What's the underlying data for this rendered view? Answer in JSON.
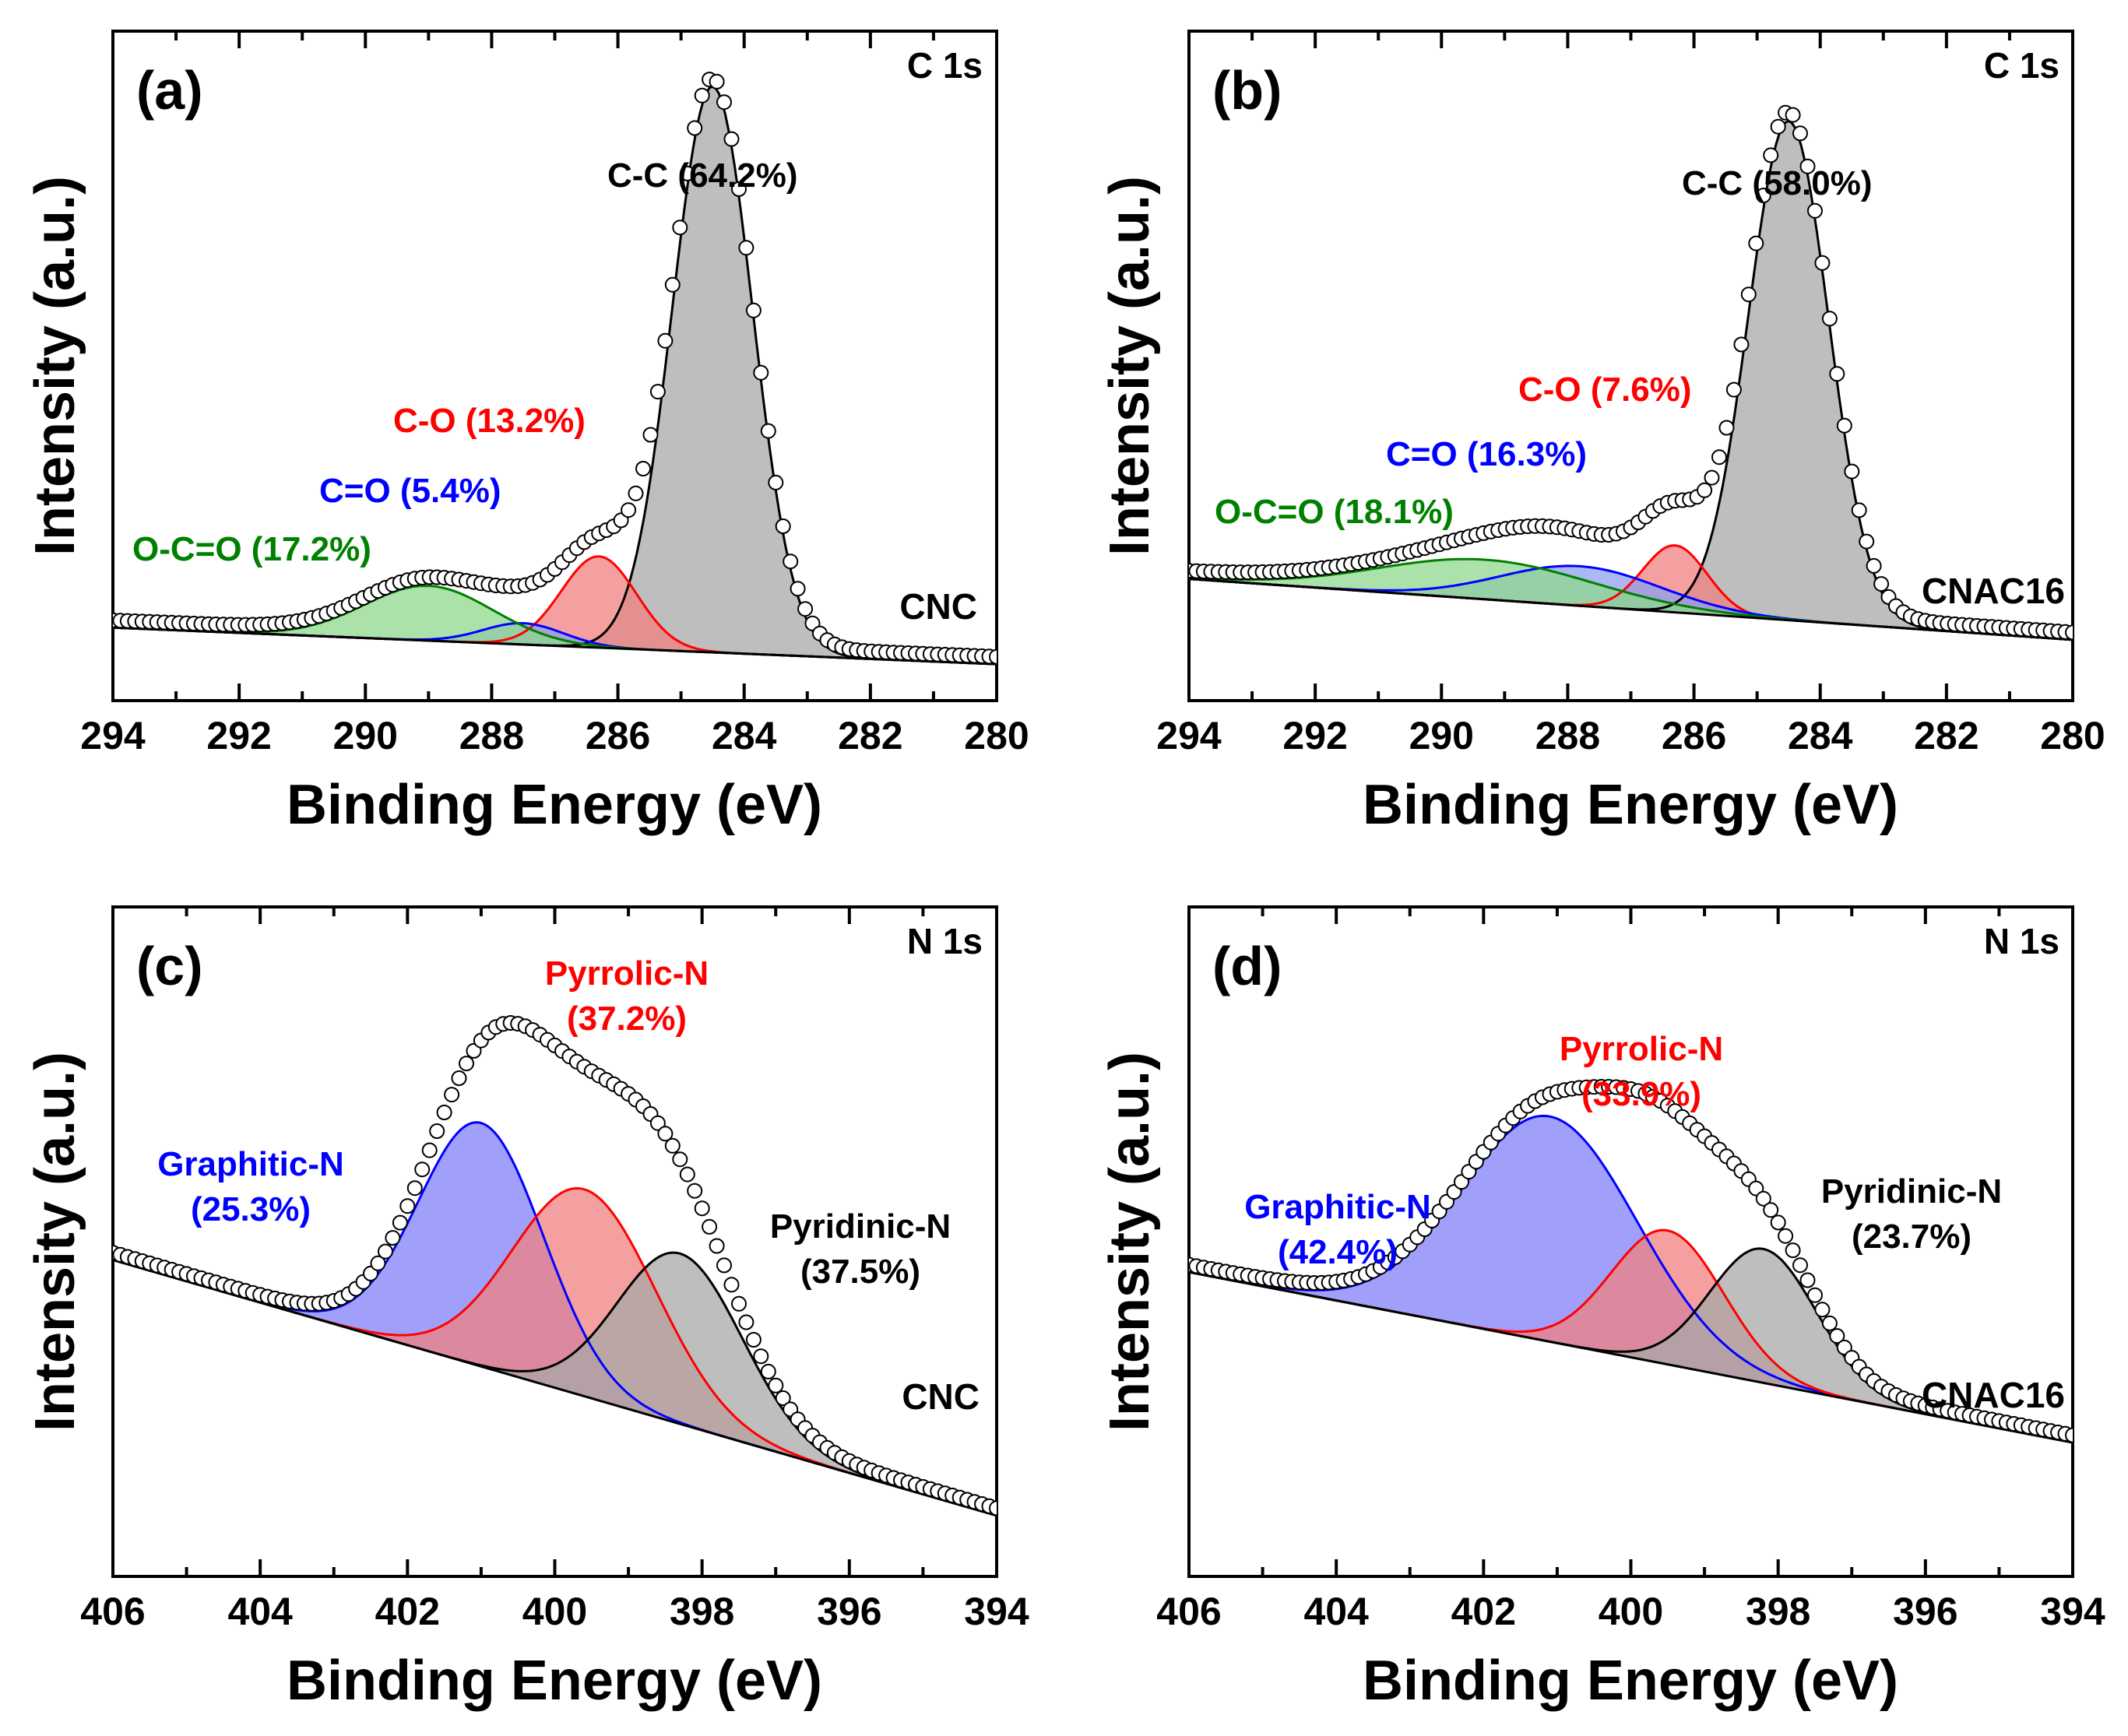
{
  "chart_data": [
    {
      "type": "area",
      "panel_label": "(a)",
      "core_level": "C 1s",
      "sample": "CNC",
      "xlabel": "Binding Energy (eV)",
      "ylabel": "Intensity (a.u.)",
      "xlim": [
        294,
        280
      ],
      "xticks": [
        294,
        292,
        290,
        288,
        286,
        284,
        282,
        280
      ],
      "ylim": [
        0,
        1.1
      ],
      "background": [
        0.12,
        0.06
      ],
      "experimental_style": "open circles",
      "components": [
        {
          "name": "C-C",
          "percent": "64.2%",
          "label": "C-C (64.2%)",
          "color": "#000000",
          "fill": "#a8a8a8",
          "center": 284.5,
          "height": 0.93,
          "fwhm": 1.5
        },
        {
          "name": "C-O",
          "percent": "13.2%",
          "label": "C-O (13.2%)",
          "color": "#ff0000",
          "fill": "#f08080",
          "center": 286.3,
          "height": 0.15,
          "fwhm": 1.4
        },
        {
          "name": "C=O",
          "percent": "5.4%",
          "label": "C=O (5.4%)",
          "color": "#0000ff",
          "fill": "#8fa0f0",
          "center": 287.5,
          "height": 0.035,
          "fwhm": 1.5
        },
        {
          "name": "O-C=O",
          "percent": "17.2%",
          "label": "O-C=O (17.2%)",
          "color": "#008000",
          "fill": "#8ed88e",
          "center": 289.0,
          "height": 0.09,
          "fwhm": 2.4
        }
      ]
    },
    {
      "type": "area",
      "panel_label": "(b)",
      "core_level": "C 1s",
      "sample": "CNAC16",
      "xlabel": "Binding Energy (eV)",
      "ylabel": "Intensity (a.u.)",
      "xlim": [
        294,
        280
      ],
      "xticks": [
        294,
        292,
        290,
        288,
        286,
        284,
        282,
        280
      ],
      "ylim": [
        0,
        1.1
      ],
      "background": [
        0.2,
        0.1
      ],
      "experimental_style": "open circles",
      "components": [
        {
          "name": "C-C",
          "percent": "58.0%",
          "label": "C-C (58.0%)",
          "color": "#000000",
          "fill": "#a8a8a8",
          "center": 284.5,
          "height": 0.82,
          "fwhm": 1.5
        },
        {
          "name": "C-O",
          "percent": "7.6%",
          "label": "C-O (7.6%)",
          "color": "#ff0000",
          "fill": "#f08080",
          "center": 286.3,
          "height": 0.11,
          "fwhm": 1.2
        },
        {
          "name": "C=O",
          "percent": "16.3%",
          "label": "C=O (16.3%)",
          "color": "#0000ff",
          "fill": "#8fa0f0",
          "center": 287.8,
          "height": 0.065,
          "fwhm": 3.0
        },
        {
          "name": "O-C=O",
          "percent": "18.1%",
          "label": "O-C=O (18.1%)",
          "color": "#008000",
          "fill": "#8ed88e",
          "center": 289.3,
          "height": 0.065,
          "fwhm": 4.0
        }
      ]
    },
    {
      "type": "area",
      "panel_label": "(c)",
      "core_level": "N 1s",
      "sample": "CNC",
      "xlabel": "Binding Energy (eV)",
      "ylabel": "Intensity (a.u.)",
      "xlim": [
        406,
        394
      ],
      "xticks": [
        406,
        404,
        402,
        400,
        398,
        396,
        394
      ],
      "ylim": [
        0,
        1.1
      ],
      "background": [
        0.52,
        0.1
      ],
      "experimental_style": "open circles",
      "components": [
        {
          "name": "Graphitic-N",
          "percent": "25.3%",
          "label_line1": "Graphitic-N",
          "label_line2": "(25.3%)",
          "color": "#0000ff",
          "fill": "#8080f8",
          "center": 401.0,
          "height": 0.4,
          "fwhm": 2.0
        },
        {
          "name": "Pyrrolic-N",
          "percent": "37.2%",
          "label_line1": "Pyrrolic-N",
          "label_line2": "(37.2%)",
          "color": "#ff0000",
          "fill": "#f08080",
          "center": 399.6,
          "height": 0.34,
          "fwhm": 2.3
        },
        {
          "name": "Pyridinic-N",
          "percent": "37.5%",
          "label_line1": "Pyridinic-N",
          "label_line2": "(37.5%)",
          "color": "#000000",
          "fill": "#a8a8a8",
          "center": 398.3,
          "height": 0.28,
          "fwhm": 2.0
        }
      ]
    },
    {
      "type": "area",
      "panel_label": "(d)",
      "core_level": "N 1s",
      "sample": "CNAC16",
      "xlabel": "Binding Energy (eV)",
      "ylabel": "Intensity (a.u.)",
      "xlim": [
        406,
        394
      ],
      "xticks": [
        406,
        404,
        402,
        400,
        398,
        396,
        394
      ],
      "ylim": [
        0,
        1.1
      ],
      "background": [
        0.5,
        0.22
      ],
      "experimental_style": "open circles",
      "components": [
        {
          "name": "Graphitic-N",
          "percent": "42.4%",
          "label_line1": "Graphitic-N",
          "label_line2": "(42.4%)",
          "color": "#0000ff",
          "fill": "#8080f8",
          "center": 401.1,
          "height": 0.37,
          "fwhm": 2.8
        },
        {
          "name": "Pyrrolic-N",
          "percent": "33.9%",
          "label_line1": "Pyrrolic-N",
          "label_line2": "(33.9%)",
          "color": "#ff0000",
          "fill": "#f08080",
          "center": 399.5,
          "height": 0.22,
          "fwhm": 1.8
        },
        {
          "name": "Pyridinic-N",
          "percent": "23.7%",
          "label_line1": "Pyridinic-N",
          "label_line2": "(23.7%)",
          "color": "#000000",
          "fill": "#a8a8a8",
          "center": 398.2,
          "height": 0.22,
          "fwhm": 1.7
        }
      ]
    }
  ]
}
